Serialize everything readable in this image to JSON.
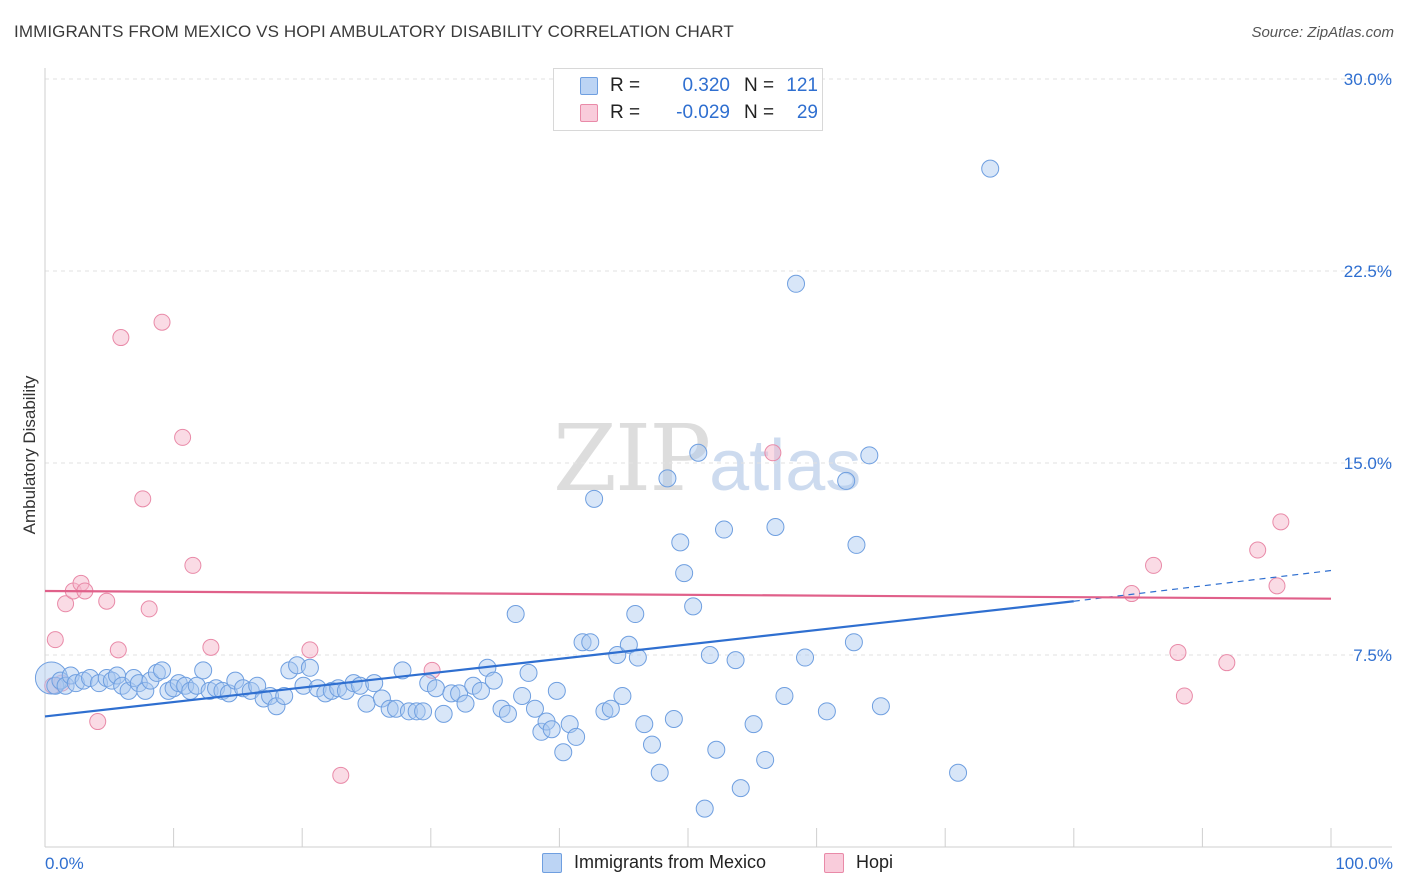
{
  "header": {
    "title": "IMMIGRANTS FROM MEXICO VS HOPI AMBULATORY DISABILITY CORRELATION CHART",
    "source": "Source: ZipAtlas.com"
  },
  "watermark": {
    "zip": "ZIP",
    "atlas": "atlas"
  },
  "legend_top": {
    "rows": [
      {
        "r_label": "R =",
        "r_value": "0.320",
        "n_label": "N =",
        "n_value": "121"
      },
      {
        "r_label": "R =",
        "r_value": "-0.029",
        "n_label": "N =",
        "n_value": "29"
      }
    ]
  },
  "legend_bottom": {
    "series1": "Immigrants from Mexico",
    "series2": "Hopi"
  },
  "colors": {
    "blue_fill": "#a9c8f0",
    "blue_stroke": "#6f9fe0",
    "blue_line": "#2f6fd0",
    "pink_fill": "#f6b8cc",
    "pink_stroke": "#e98aa8",
    "pink_line": "#e0608a",
    "axis_text": "#2f6fd0",
    "grid": "#e2e2e2"
  },
  "chart_data": {
    "type": "scatter",
    "title": "IMMIGRANTS FROM MEXICO VS HOPI AMBULATORY DISABILITY CORRELATION CHART",
    "xlabel": "",
    "ylabel": "Ambulatory Disability",
    "xlim": [
      0,
      100
    ],
    "ylim": [
      0,
      30.5
    ],
    "x_tick_labels": [
      "0.0%",
      "100.0%"
    ],
    "y_ticks": [
      7.5,
      15.0,
      22.5,
      30.0
    ],
    "y_tick_labels": [
      "7.5%",
      "15.0%",
      "22.5%",
      "30.0%"
    ],
    "grid": "horizontal dashed",
    "legend": "top-center and bottom",
    "series": [
      {
        "name": "Immigrants from Mexico",
        "R": 0.32,
        "N": 121,
        "trend": {
          "x0": 0,
          "y0": 5.1,
          "x1": 80,
          "y1": 9.6,
          "dashed_to": 100,
          "dashed_y": 10.8
        },
        "points": [
          [
            0.5,
            6.6
          ],
          [
            0.8,
            6.3
          ],
          [
            1.2,
            6.5
          ],
          [
            1.6,
            6.3
          ],
          [
            2.0,
            6.7
          ],
          [
            2.4,
            6.4
          ],
          [
            3.0,
            6.5
          ],
          [
            3.5,
            6.6
          ],
          [
            4.2,
            6.4
          ],
          [
            4.8,
            6.6
          ],
          [
            5.2,
            6.5
          ],
          [
            5.6,
            6.7
          ],
          [
            6.0,
            6.3
          ],
          [
            6.5,
            6.1
          ],
          [
            6.9,
            6.6
          ],
          [
            7.3,
            6.4
          ],
          [
            7.8,
            6.1
          ],
          [
            8.2,
            6.5
          ],
          [
            8.7,
            6.8
          ],
          [
            9.1,
            6.9
          ],
          [
            9.6,
            6.1
          ],
          [
            10.0,
            6.2
          ],
          [
            10.4,
            6.4
          ],
          [
            10.9,
            6.3
          ],
          [
            11.3,
            6.1
          ],
          [
            11.8,
            6.3
          ],
          [
            12.3,
            6.9
          ],
          [
            12.8,
            6.1
          ],
          [
            13.3,
            6.2
          ],
          [
            13.8,
            6.1
          ],
          [
            14.3,
            6.0
          ],
          [
            14.8,
            6.5
          ],
          [
            15.4,
            6.2
          ],
          [
            16.0,
            6.1
          ],
          [
            16.5,
            6.3
          ],
          [
            17.0,
            5.8
          ],
          [
            17.5,
            5.9
          ],
          [
            18.0,
            5.5
          ],
          [
            18.6,
            5.9
          ],
          [
            19.0,
            6.9
          ],
          [
            19.6,
            7.1
          ],
          [
            20.1,
            6.3
          ],
          [
            20.6,
            7.0
          ],
          [
            21.2,
            6.2
          ],
          [
            21.8,
            6.0
          ],
          [
            22.3,
            6.1
          ],
          [
            22.8,
            6.2
          ],
          [
            23.4,
            6.1
          ],
          [
            24.0,
            6.4
          ],
          [
            24.5,
            6.3
          ],
          [
            25.0,
            5.6
          ],
          [
            25.6,
            6.4
          ],
          [
            26.2,
            5.8
          ],
          [
            26.8,
            5.4
          ],
          [
            27.3,
            5.4
          ],
          [
            27.8,
            6.9
          ],
          [
            28.3,
            5.3
          ],
          [
            28.9,
            5.3
          ],
          [
            29.4,
            5.3
          ],
          [
            29.8,
            6.4
          ],
          [
            30.4,
            6.2
          ],
          [
            31.0,
            5.2
          ],
          [
            31.6,
            6.0
          ],
          [
            32.2,
            6.0
          ],
          [
            32.7,
            5.6
          ],
          [
            33.3,
            6.3
          ],
          [
            33.9,
            6.1
          ],
          [
            34.4,
            7.0
          ],
          [
            34.9,
            6.5
          ],
          [
            35.5,
            5.4
          ],
          [
            36.0,
            5.2
          ],
          [
            36.6,
            9.1
          ],
          [
            37.1,
            5.9
          ],
          [
            37.6,
            6.8
          ],
          [
            38.1,
            5.4
          ],
          [
            38.6,
            4.5
          ],
          [
            39.0,
            4.9
          ],
          [
            39.4,
            4.6
          ],
          [
            39.8,
            6.1
          ],
          [
            40.3,
            3.7
          ],
          [
            40.8,
            4.8
          ],
          [
            41.3,
            4.3
          ],
          [
            41.8,
            8.0
          ],
          [
            42.4,
            8.0
          ],
          [
            42.7,
            13.6
          ],
          [
            43.5,
            5.3
          ],
          [
            44.0,
            5.4
          ],
          [
            44.5,
            7.5
          ],
          [
            44.9,
            5.9
          ],
          [
            45.4,
            7.9
          ],
          [
            45.9,
            9.1
          ],
          [
            46.1,
            7.4
          ],
          [
            46.6,
            4.8
          ],
          [
            47.2,
            4.0
          ],
          [
            47.8,
            2.9
          ],
          [
            48.4,
            14.4
          ],
          [
            48.9,
            5.0
          ],
          [
            49.4,
            11.9
          ],
          [
            49.7,
            10.7
          ],
          [
            50.4,
            9.4
          ],
          [
            50.8,
            15.4
          ],
          [
            51.3,
            1.5
          ],
          [
            51.7,
            7.5
          ],
          [
            52.2,
            3.8
          ],
          [
            52.8,
            12.4
          ],
          [
            53.7,
            7.3
          ],
          [
            54.1,
            2.3
          ],
          [
            55.1,
            4.8
          ],
          [
            56.0,
            3.4
          ],
          [
            56.8,
            12.5
          ],
          [
            57.5,
            5.9
          ],
          [
            58.4,
            22.0
          ],
          [
            59.1,
            7.4
          ],
          [
            60.8,
            5.3
          ],
          [
            62.3,
            14.3
          ],
          [
            62.9,
            8.0
          ],
          [
            63.1,
            11.8
          ],
          [
            64.1,
            15.3
          ],
          [
            65.0,
            5.5
          ],
          [
            71.0,
            2.9
          ],
          [
            73.5,
            26.5
          ]
        ]
      },
      {
        "name": "Hopi",
        "R": -0.029,
        "N": 29,
        "trend": {
          "x0": 0,
          "y0": 10.0,
          "x1": 100,
          "y1": 9.7
        },
        "points": [
          [
            0.6,
            6.3
          ],
          [
            0.8,
            8.1
          ],
          [
            1.3,
            6.4
          ],
          [
            1.6,
            9.5
          ],
          [
            2.2,
            10.0
          ],
          [
            2.8,
            10.3
          ],
          [
            3.1,
            10.0
          ],
          [
            4.1,
            4.9
          ],
          [
            4.8,
            9.6
          ],
          [
            5.7,
            7.7
          ],
          [
            5.9,
            19.9
          ],
          [
            7.6,
            13.6
          ],
          [
            8.1,
            9.3
          ],
          [
            9.1,
            20.5
          ],
          [
            10.7,
            16.0
          ],
          [
            11.5,
            11.0
          ],
          [
            12.9,
            7.8
          ],
          [
            20.6,
            7.7
          ],
          [
            23.0,
            2.8
          ],
          [
            30.1,
            6.9
          ],
          [
            56.6,
            15.4
          ],
          [
            84.5,
            9.9
          ],
          [
            86.2,
            11.0
          ],
          [
            88.1,
            7.6
          ],
          [
            88.6,
            5.9
          ],
          [
            91.9,
            7.2
          ],
          [
            94.3,
            11.6
          ],
          [
            95.8,
            10.2
          ],
          [
            96.1,
            12.7
          ]
        ]
      }
    ]
  }
}
